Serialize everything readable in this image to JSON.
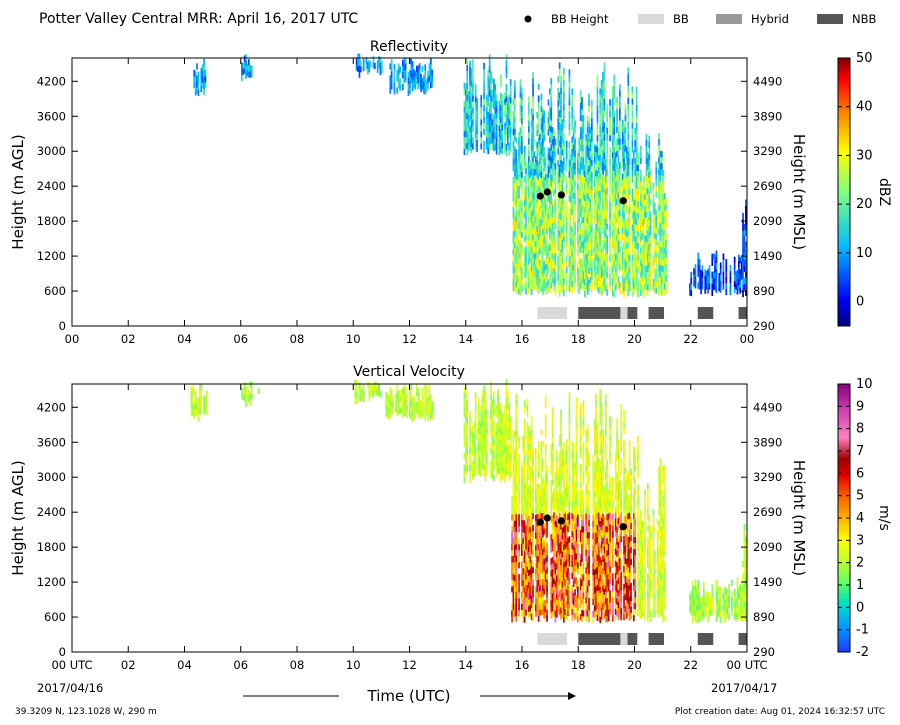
{
  "header": {
    "title": "Potter Valley Central MRR:  April 16, 2017 UTC"
  },
  "legend": {
    "placement": "top-right",
    "items": [
      {
        "label": "BB Height",
        "kind": "dot",
        "color": "#000000"
      },
      {
        "label": "BB",
        "kind": "bar",
        "color": "#d9d9d9"
      },
      {
        "label": "Hybrid",
        "kind": "bar",
        "color": "#999999"
      },
      {
        "label": "NBB",
        "kind": "bar",
        "color": "#555555"
      }
    ]
  },
  "footer": {
    "location": "39.3209 N, 123.1028 W, 290 m",
    "created": "Plot creation date: Aug 01, 2024 16:32:57 UTC",
    "xlabel": "Time (UTC)",
    "start_tick": "00 UTC",
    "start_date": "2017/04/16",
    "end_tick": "00 UTC",
    "end_date": "2017/04/17"
  },
  "chart_data": [
    {
      "type": "heatmap",
      "title": "Reflectivity",
      "xlabel": "Time (UTC)",
      "ylabel": "Height (m AGL)",
      "ylabel_right": "Height (m MSL)",
      "xlim": [
        0,
        24
      ],
      "ylim": [
        0,
        4600
      ],
      "x_ticks": [
        "00",
        "02",
        "04",
        "06",
        "08",
        "10",
        "12",
        "14",
        "16",
        "18",
        "20",
        "22",
        "00"
      ],
      "y_ticks": [
        0,
        600,
        1200,
        1800,
        2400,
        3000,
        3600,
        4200
      ],
      "y_ticks_right": [
        290,
        890,
        1490,
        2090,
        2690,
        3290,
        3890,
        4490
      ],
      "colorbar": {
        "label": "dBZ",
        "range": [
          -5,
          50
        ],
        "ticks": [
          0,
          10,
          20,
          30,
          40,
          50
        ]
      },
      "bright_band_height": [
        {
          "x": 16.65,
          "y": 2230
        },
        {
          "x": 16.9,
          "y": 2300
        },
        {
          "x": 17.4,
          "y": 2250
        },
        {
          "x": 19.6,
          "y": 2150
        }
      ],
      "bb_type_segments": [
        {
          "type": "BB",
          "start": 16.55,
          "end": 17.6
        },
        {
          "type": "NBB",
          "start": 18.0,
          "end": 19.5
        },
        {
          "type": "BB",
          "start": 19.5,
          "end": 19.75
        },
        {
          "type": "NBB",
          "start": 19.75,
          "end": 20.1
        },
        {
          "type": "NBB",
          "start": 20.5,
          "end": 21.05
        },
        {
          "type": "NBB",
          "start": 22.25,
          "end": 22.8
        },
        {
          "type": "NBB",
          "start": 23.7,
          "end": 24.0
        }
      ]
    },
    {
      "type": "heatmap",
      "title": "Vertical Velocity",
      "xlabel": "Time (UTC)",
      "ylabel": "Height (m AGL)",
      "ylabel_right": "Height (m MSL)",
      "xlim": [
        0,
        24
      ],
      "ylim": [
        0,
        4600
      ],
      "x_ticks": [
        "00 UTC",
        "02",
        "04",
        "06",
        "08",
        "10",
        "12",
        "14",
        "16",
        "18",
        "20",
        "22",
        "00 UTC"
      ],
      "y_ticks": [
        0,
        600,
        1200,
        1800,
        2400,
        3000,
        3600,
        4200
      ],
      "y_ticks_right": [
        290,
        890,
        1490,
        2090,
        2690,
        3290,
        3890,
        4490
      ],
      "colorbar": {
        "label": "m/s",
        "range": [
          -2,
          10
        ],
        "ticks": [
          -2,
          -1,
          0,
          1,
          2,
          3,
          4,
          5,
          6,
          7,
          8,
          9,
          10
        ]
      },
      "bright_band_height": [
        {
          "x": 16.65,
          "y": 2230
        },
        {
          "x": 16.9,
          "y": 2300
        },
        {
          "x": 17.4,
          "y": 2250
        },
        {
          "x": 19.6,
          "y": 2150
        }
      ],
      "bb_type_segments": [
        {
          "type": "BB",
          "start": 16.55,
          "end": 17.6
        },
        {
          "type": "NBB",
          "start": 18.0,
          "end": 19.5
        },
        {
          "type": "BB",
          "start": 19.5,
          "end": 19.75
        },
        {
          "type": "NBB",
          "start": 19.75,
          "end": 20.1
        },
        {
          "type": "NBB",
          "start": 20.5,
          "end": 21.05
        },
        {
          "type": "NBB",
          "start": 22.25,
          "end": 22.8
        },
        {
          "type": "NBB",
          "start": 23.7,
          "end": 24.0
        }
      ]
    }
  ]
}
